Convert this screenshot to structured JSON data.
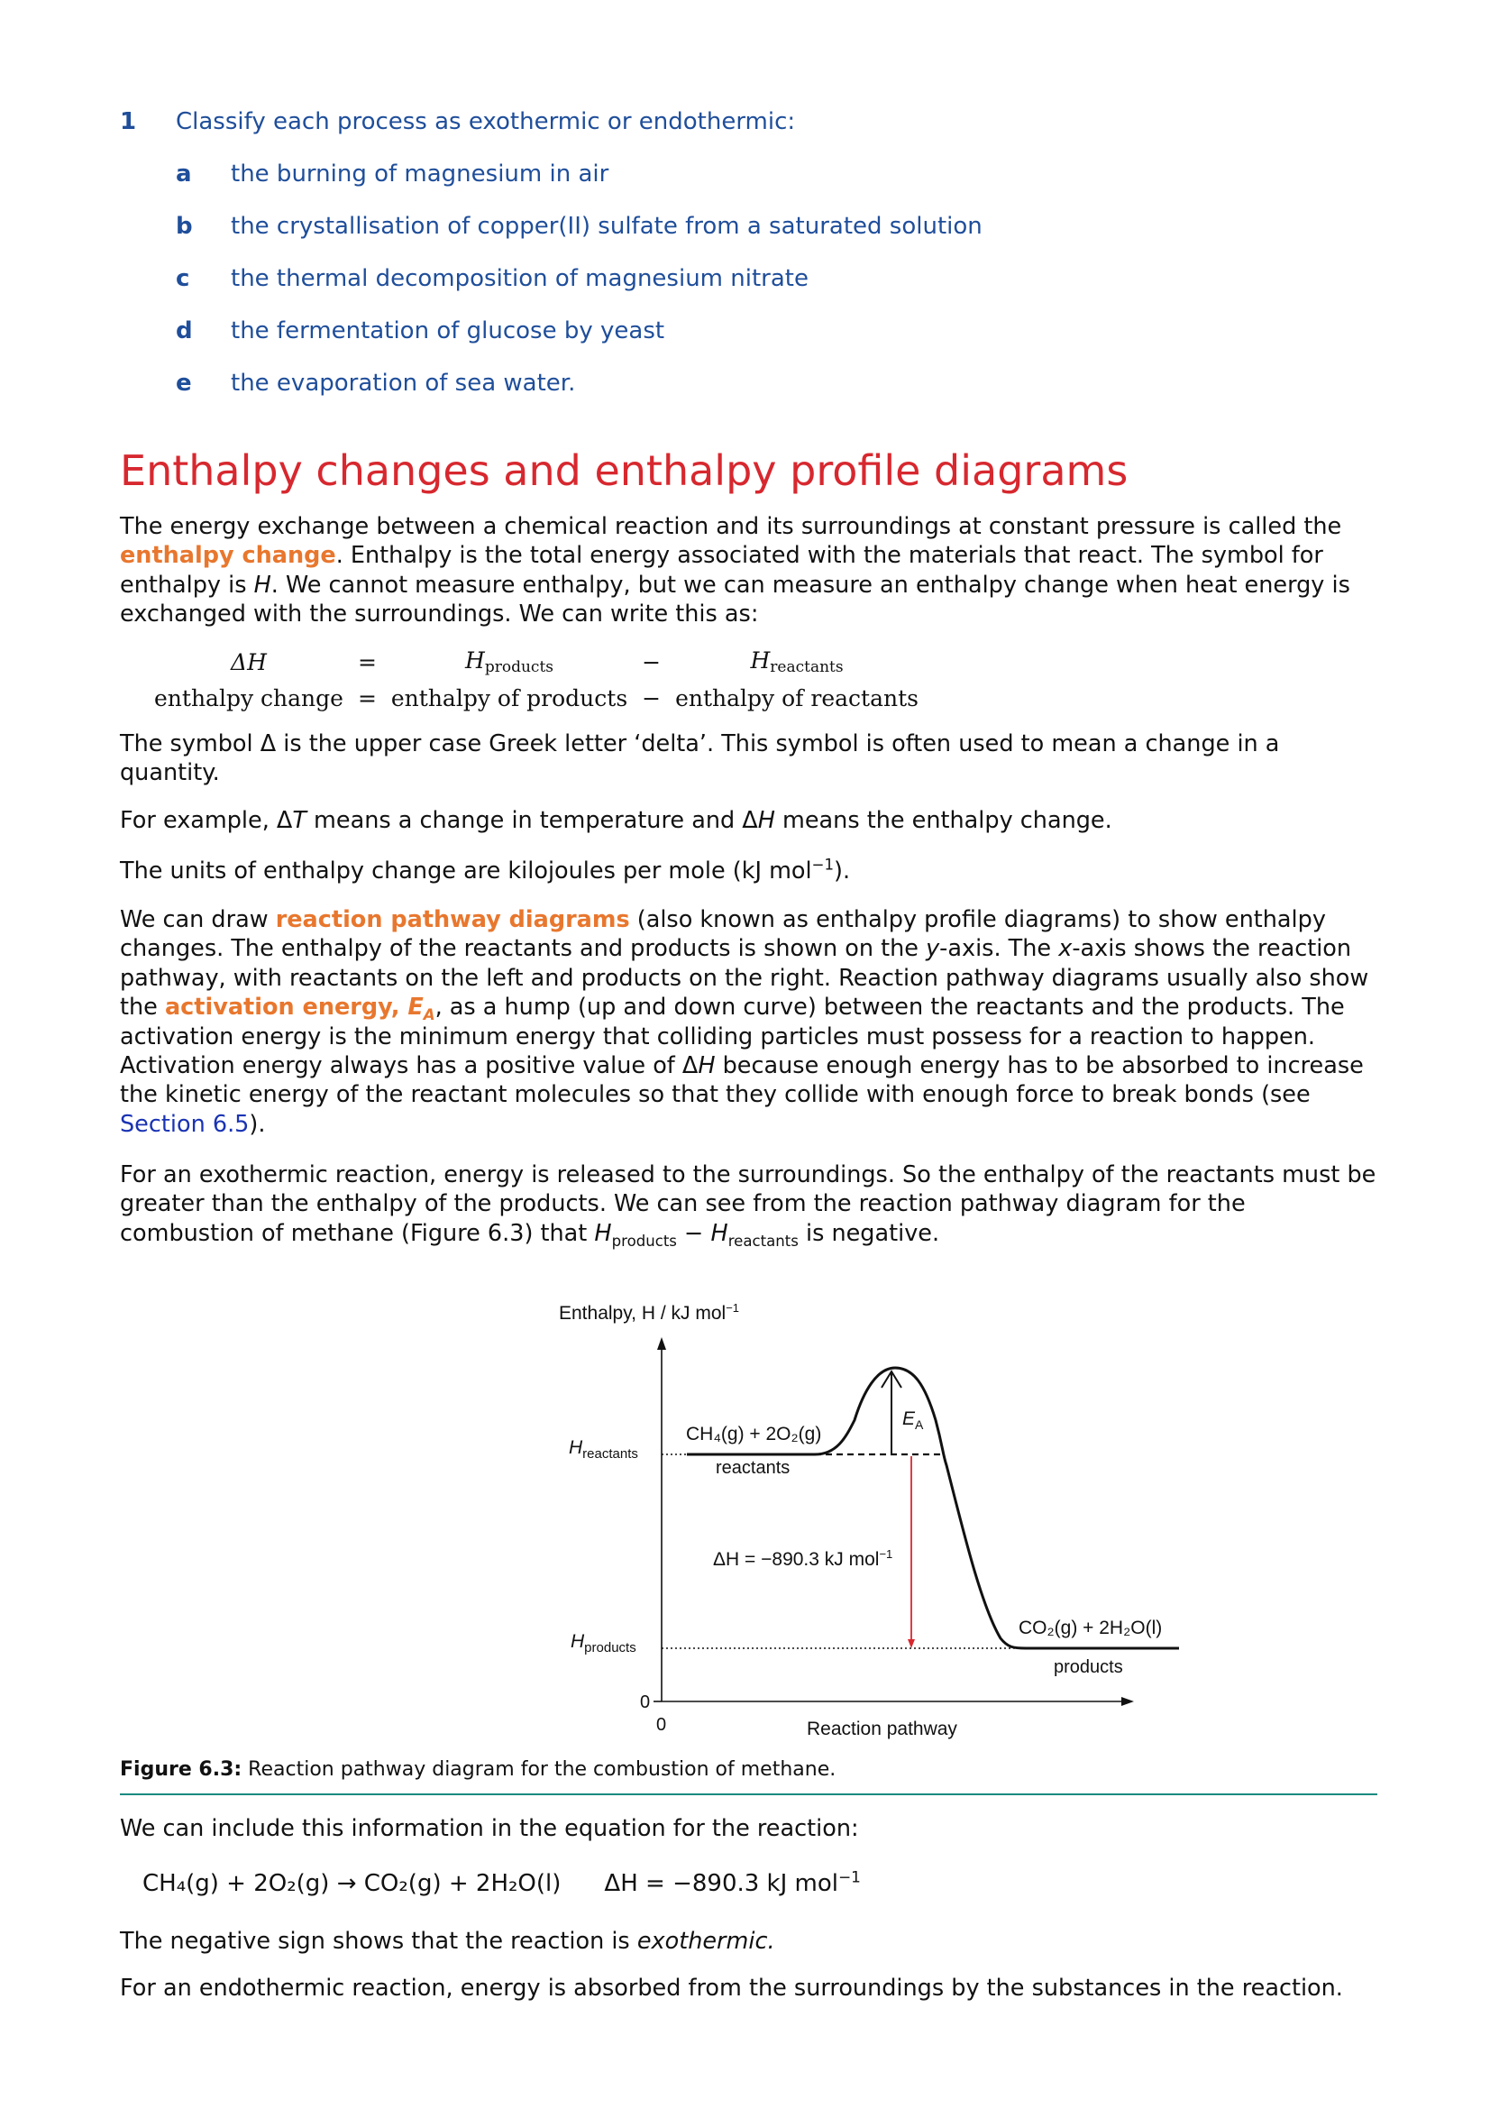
{
  "question": {
    "number": "1",
    "prompt": "Classify each process as exothermic or endothermic:",
    "items": [
      {
        "letter": "a",
        "text": "the burning of magnesium in air"
      },
      {
        "letter": "b",
        "text": "the crystallisation of copper(II) sulfate from a saturated solution"
      },
      {
        "letter": "c",
        "text": "the thermal decomposition of magnesium nitrate"
      },
      {
        "letter": "d",
        "text": "the fermentation of glucose by yeast"
      },
      {
        "letter": "e",
        "text": "the evaporation of sea water."
      }
    ]
  },
  "section": {
    "title": "Enthalpy changes and enthalpy profile diagrams"
  },
  "p1": {
    "a": "The energy exchange between a chemical reaction and its surroundings at constant pressure is called the ",
    "term": "enthalpy change",
    "b": ". Enthalpy is the total energy associated with the materials that react. The symbol for enthalpy is ",
    "h": "H",
    "c": ". We cannot measure enthalpy, but we can measure an enthalpy change when heat energy is exchanged with the surroundings. We can write this as:"
  },
  "equation": {
    "row1": {
      "lhs": "ΔH",
      "eq": "=",
      "h1": "H",
      "h1_sub": "products",
      "minus": "−",
      "h2": "H",
      "h2_sub": "reactants"
    },
    "row2": {
      "lhs": "enthalpy change",
      "eq": "=",
      "h1": "enthalpy of products",
      "minus": "−",
      "h2": "enthalpy of reactants"
    }
  },
  "p2": "The symbol Δ is the upper case Greek letter ‘delta’. This symbol is often used to mean a change in a quantity.",
  "p3": {
    "a": "For example, Δ",
    "t": "T",
    "b": " means a change in temperature and Δ",
    "h": "H",
    "c": " means the enthalpy change."
  },
  "p4": {
    "a": "The units of enthalpy change are kilojoules per mole (kJ mol",
    "sup": "−1",
    "b": ")."
  },
  "p5": {
    "a": "We can draw ",
    "term1": "reaction pathway diagrams",
    "b": " (also known as enthalpy profile diagrams) to show enthalpy changes. The enthalpy of the reactants and products is shown on the ",
    "y": "y",
    "c": "-axis. The ",
    "x": "x",
    "d": "-axis shows the reaction pathway, with reactants on the left and products on the right. Reaction pathway diagrams usually also show the ",
    "term2": "activation energy, ",
    "term2_e": "E",
    "term2_sub": "A",
    "e": ", as a hump (up and down curve) between the reactants and the products. The activation energy is the minimum energy that colliding particles must possess for a reaction to happen. Activation energy always has a positive value of Δ",
    "h": "H",
    "f": " because enough energy has to be absorbed to increase the kinetic energy of the reactant molecules so that they collide with enough force to break bonds (see ",
    "link": "Section 6.5",
    "g": ")."
  },
  "p6": {
    "a": "For an exothermic reaction, energy is released to the surroundings. So the enthalpy of the reactants must be greater than the enthalpy of the products. We can see from the reaction pathway diagram for the combustion of methane (Figure 6.3) that ",
    "h1": "H",
    "h1_sub": "products",
    "minus": " − ",
    "h2": "H",
    "h2_sub": "reactants",
    "b": " is negative."
  },
  "figure": {
    "y_axis_title": "Enthalpy, H / kJ mol",
    "y_axis_sup": "−1",
    "x_axis_title": "Reaction pathway",
    "origin_y": "0",
    "origin_x": "0",
    "h_reactants": "H",
    "h_reactants_sub": "reactants",
    "h_products": "H",
    "h_products_sub": "products",
    "reactants_formula": "CH₄(g) + 2O₂(g)",
    "reactants_label": "reactants",
    "products_formula": "CO₂(g) + 2H₂O(l)",
    "products_label": "products",
    "ea_label": "E",
    "ea_sub": "A",
    "dh_label": "ΔH = −890.3 kJ mol",
    "dh_sup": "−1",
    "colors": {
      "curve": "#111111",
      "dh_arrow": "#d7282f"
    }
  },
  "caption": {
    "label": "Figure 6.3:",
    "text": " Reaction pathway diagram for the combustion of methane."
  },
  "p7": "We can include this information in the equation for the reaction:",
  "reaction": {
    "lhs": "CH₄(g) + 2O₂(g) → CO₂(g) + 2H₂O(l)",
    "dh": "ΔH = −890.3 kJ mol",
    "dh_sup": "−1"
  },
  "p8": {
    "a": "The negative sign shows that the reaction is ",
    "em": "exothermic."
  },
  "p9": "For an endothermic reaction, energy is absorbed from the surroundings by the substances in the reaction."
}
